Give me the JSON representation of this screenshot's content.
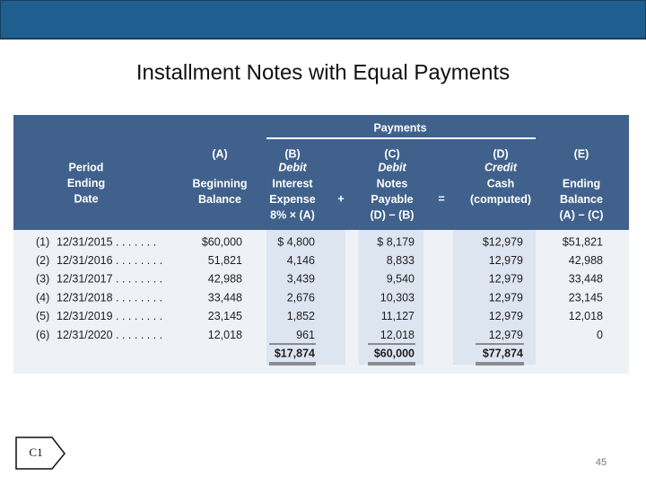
{
  "title": "Installment Notes with Equal Payments",
  "table": {
    "group_label": "Payments",
    "columns": [
      {
        "lines": [
          "Period",
          "Ending",
          "Date"
        ]
      },
      {
        "letter": "(A)",
        "lines": [
          "Beginning",
          "Balance"
        ]
      },
      {
        "letter": "(B)",
        "kind": "Debit",
        "lines": [
          "Interest",
          "Expense",
          "8% × (A)"
        ]
      },
      {
        "letter": "(C)",
        "kind": "Debit",
        "lines": [
          "Notes",
          "Payable",
          "(D) − (B)"
        ]
      },
      {
        "letter": "(D)",
        "kind": "Credit",
        "lines": [
          "Cash",
          "(computed)"
        ]
      },
      {
        "letter": "(E)",
        "lines": [
          "Ending",
          "Balance",
          "(A) − (C)"
        ]
      }
    ],
    "operators": [
      "+",
      "="
    ],
    "rows": [
      [
        "(1)",
        "12/31/2015 . . . . . . .",
        "$60,000",
        "$ 4,800",
        "$ 8,179",
        "$12,979",
        "$51,821"
      ],
      [
        "(2)",
        "12/31/2016 . . . . . . . .",
        "51,821",
        "4,146",
        "8,833",
        "12,979",
        "42,988"
      ],
      [
        "(3)",
        "12/31/2017 . . . . . . . .",
        "42,988",
        "3,439",
        "9,540",
        "12,979",
        "33,448"
      ],
      [
        "(4)",
        "12/31/2018 . . . . . . . .",
        "33,448",
        "2,676",
        "10,303",
        "12,979",
        "23,145"
      ],
      [
        "(5)",
        "12/31/2019 . . . . . . . .",
        "23,145",
        "1,852",
        "11,127",
        "12,979",
        "12,018"
      ],
      [
        "(6)",
        "12/31/2020 . . . . . . . .",
        "12,018",
        "961",
        "12,018",
        "12,979",
        "0"
      ]
    ],
    "totals": [
      "$17,874",
      "$60,000",
      "$77,874"
    ]
  },
  "badge": "C1",
  "page_number": "45"
}
